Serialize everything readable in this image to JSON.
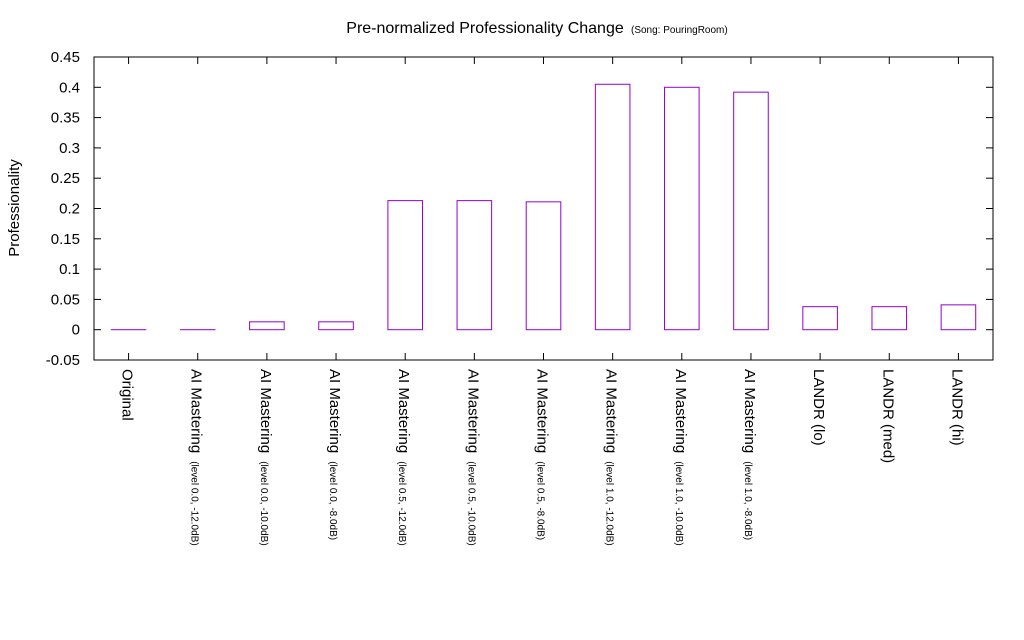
{
  "chart_data": {
    "type": "bar",
    "title": "Pre-normalized Professionality Change",
    "subtitle": "(Song: PouringRoom)",
    "xlabel": "",
    "ylabel": "Professionality",
    "ylim": [
      -0.05,
      0.45
    ],
    "yticks": [
      "-0.05",
      "0",
      "0.05",
      "0.1",
      "0.15",
      "0.2",
      "0.25",
      "0.3",
      "0.35",
      "0.4",
      "0.45"
    ],
    "categories": [
      {
        "main": "Original",
        "sub": ""
      },
      {
        "main": "AI Mastering",
        "sub": "(level 0.0, -12.0dB)"
      },
      {
        "main": "AI Mastering",
        "sub": "(level 0.0, -10.0dB)"
      },
      {
        "main": "AI Mastering",
        "sub": "(level 0.0, -8.0dB)"
      },
      {
        "main": "AI Mastering",
        "sub": "(level 0.5, -12.0dB)"
      },
      {
        "main": "AI Mastering",
        "sub": "(level 0.5, -10.0dB)"
      },
      {
        "main": "AI Mastering",
        "sub": "(level 0.5, -8.0dB)"
      },
      {
        "main": "AI Mastering",
        "sub": "(level 1.0, -12.0dB)"
      },
      {
        "main": "AI Mastering",
        "sub": "(level 1.0, -10.0dB)"
      },
      {
        "main": "AI Mastering",
        "sub": "(level 1.0, -8.0dB)"
      },
      {
        "main": "LANDR (lo)",
        "sub": ""
      },
      {
        "main": "LANDR (med)",
        "sub": ""
      },
      {
        "main": "LANDR (hi)",
        "sub": ""
      }
    ],
    "values": [
      0.0,
      0.0,
      0.013,
      0.013,
      0.213,
      0.213,
      0.211,
      0.405,
      0.4,
      0.392,
      0.038,
      0.038,
      0.041
    ],
    "grid": false,
    "legend": "none",
    "bar_color": "#9400d3"
  }
}
